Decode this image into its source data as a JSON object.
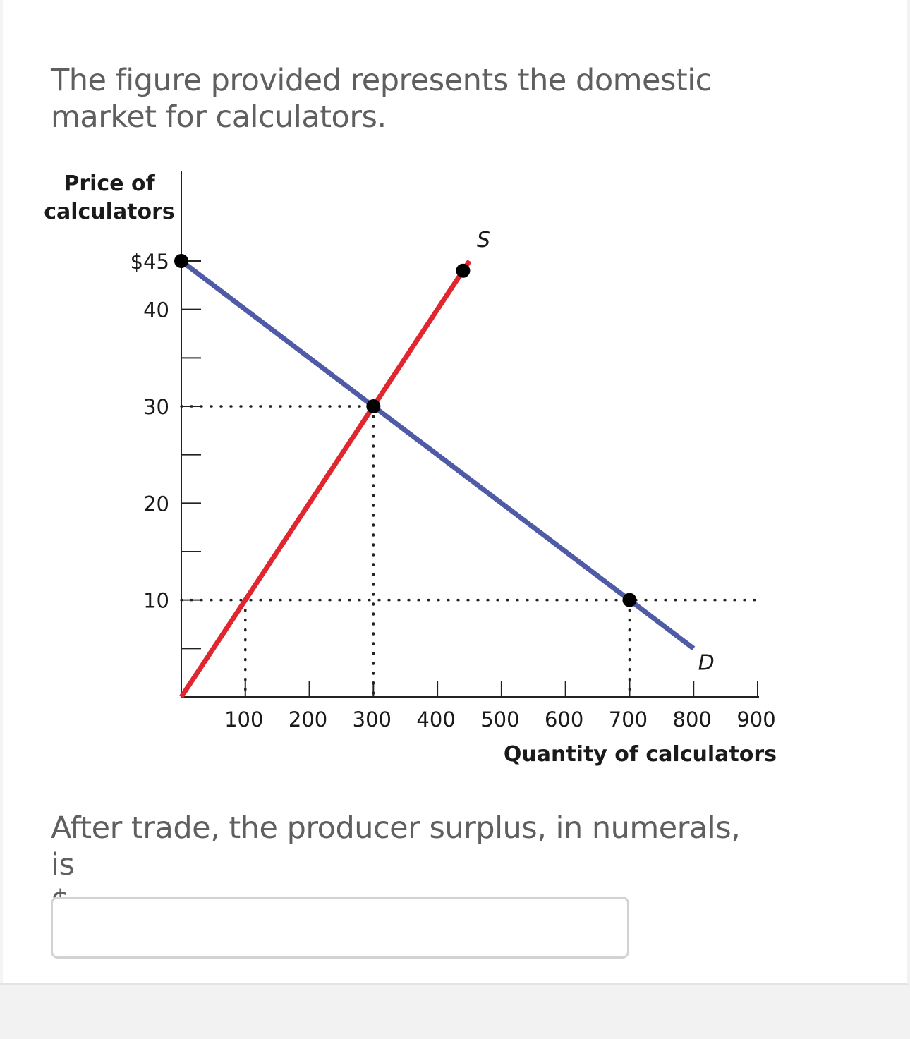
{
  "intro_text": "The figure provided represents the domestic market for calculators.",
  "question": {
    "text": "After trade, the producer surplus, in numerals, is",
    "blank": "$______.",
    "answer_value": ""
  },
  "chart_data": {
    "type": "line",
    "ylabel_lines": [
      "Price of",
      "calculators"
    ],
    "xlabel": "Quantity of calculators",
    "xlim": [
      0,
      900
    ],
    "ylim": [
      0,
      45
    ],
    "x_ticks": [
      100,
      200,
      300,
      400,
      500,
      600,
      700,
      800,
      900
    ],
    "x_tick_labels": [
      "100",
      "200",
      "300",
      "400",
      "500",
      "600",
      "700",
      "800",
      "900"
    ],
    "y_ticks": [
      5,
      10,
      15,
      20,
      25,
      30,
      35,
      40,
      45
    ],
    "y_tick_labels": [
      {
        "value": 10,
        "label": "10"
      },
      {
        "value": 20,
        "label": "20"
      },
      {
        "value": 30,
        "label": "30"
      },
      {
        "value": 40,
        "label": "40"
      },
      {
        "value": 45,
        "label": "$45"
      }
    ],
    "series": [
      {
        "name": "S",
        "color": "#e0262f",
        "x": [
          0,
          450
        ],
        "y": [
          0,
          45
        ]
      },
      {
        "name": "D",
        "color": "#4f5ba6",
        "x": [
          0,
          800
        ],
        "y": [
          45,
          5
        ]
      }
    ],
    "points": [
      {
        "x": 0,
        "y": 45
      },
      {
        "x": 440,
        "y": 44
      },
      {
        "x": 300,
        "y": 30
      },
      {
        "x": 700,
        "y": 10
      }
    ],
    "guides": [
      {
        "from": [
          0,
          30
        ],
        "to": [
          300,
          30
        ]
      },
      {
        "from": [
          300,
          30
        ],
        "to": [
          300,
          0
        ]
      },
      {
        "from": [
          0,
          10
        ],
        "to": [
          900,
          10
        ]
      },
      {
        "from": [
          100,
          10
        ],
        "to": [
          100,
          0
        ]
      },
      {
        "from": [
          700,
          10
        ],
        "to": [
          700,
          0
        ]
      }
    ]
  }
}
